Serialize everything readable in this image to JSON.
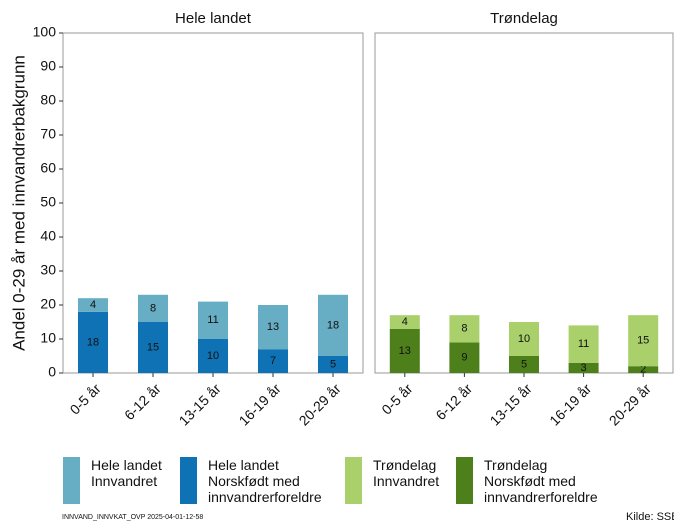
{
  "chart_data": [
    {
      "type": "stacked-bar",
      "title": "Hele landet",
      "ylabel": "Andel 0-29 år med innvandrerbakgrunn",
      "categories": [
        "0-5 år",
        "6-12 år",
        "13-15 år",
        "16-19 år",
        "20-29 år"
      ],
      "series": [
        {
          "name": "Hele landet Innvandret",
          "color": "#67adc4",
          "values": [
            4,
            8,
            11,
            13,
            18
          ]
        },
        {
          "name": "Hele landet Norskfødt med innvandrerforeldre",
          "color": "#0e72b5",
          "values": [
            18,
            15,
            10,
            7,
            5
          ]
        }
      ],
      "ylim": [
        0,
        100
      ],
      "yticks": [
        0,
        10,
        20,
        30,
        40,
        50,
        60,
        70,
        80,
        90,
        100
      ]
    },
    {
      "type": "stacked-bar",
      "title": "Trøndelag",
      "categories": [
        "0-5 år",
        "6-12 år",
        "13-15 år",
        "16-19 år",
        "20-29 år"
      ],
      "series": [
        {
          "name": "Trøndelag Innvandret",
          "color": "#a9d06a",
          "values": [
            4,
            8,
            10,
            11,
            15
          ]
        },
        {
          "name": "Trøndelag Norskfødt med innvandrerforeldre",
          "color": "#4d7f1a",
          "values": [
            13,
            9,
            5,
            3,
            2
          ]
        }
      ],
      "ylim": [
        0,
        100
      ]
    }
  ],
  "footnote": "INNVAND_INNVKAT_OVP  2025-04-01-12-58",
  "source": "Kilde: SSB"
}
